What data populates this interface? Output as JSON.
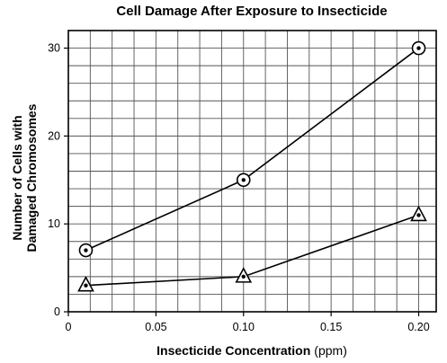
{
  "chart_data": {
    "type": "line",
    "title": "Cell Damage After Exposure to Insecticide",
    "xlabel": "Insecticide Concentration",
    "xunit": "(ppm)",
    "ylabel_line1": "Number of Cells with",
    "ylabel_line2": "Damaged Chromosomes",
    "xlim": [
      0,
      0.21
    ],
    "ylim": [
      0,
      32
    ],
    "xticks": [
      {
        "value": 0,
        "label": "0"
      },
      {
        "value": 0.05,
        "label": "0.05"
      },
      {
        "value": 0.1,
        "label": "0.10"
      },
      {
        "value": 0.15,
        "label": "0.15"
      },
      {
        "value": 0.2,
        "label": "0.20"
      }
    ],
    "yticks": [
      {
        "value": 0,
        "label": "0"
      },
      {
        "value": 10,
        "label": "10"
      },
      {
        "value": 20,
        "label": "20"
      },
      {
        "value": 30,
        "label": "30"
      }
    ],
    "grid": true,
    "grid_step_x": 0.0125,
    "grid_step_y": 2,
    "legend": "none",
    "series": [
      {
        "marker": "circle",
        "points": [
          {
            "x": 0.01,
            "y": 7
          },
          {
            "x": 0.1,
            "y": 15
          },
          {
            "x": 0.2,
            "y": 30
          }
        ]
      },
      {
        "marker": "triangle",
        "points": [
          {
            "x": 0.01,
            "y": 3
          },
          {
            "x": 0.1,
            "y": 4
          },
          {
            "x": 0.2,
            "y": 11
          }
        ]
      }
    ]
  }
}
